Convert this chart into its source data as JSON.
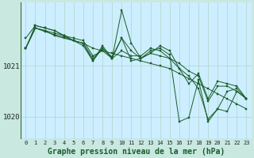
{
  "background_color": "#c8e8e0",
  "plot_bg_color": "#cceeff",
  "line_color": "#1a5c2a",
  "marker_color": "#1a5c2a",
  "xlabel": "Graphe pression niveau de la mer (hPa)",
  "yticks": [
    1020,
    1021
  ],
  "ylim": [
    1019.55,
    1022.25
  ],
  "xlim": [
    -0.5,
    23.5
  ],
  "xticks": [
    0,
    1,
    2,
    3,
    4,
    5,
    6,
    7,
    8,
    9,
    10,
    11,
    12,
    13,
    14,
    15,
    16,
    17,
    18,
    19,
    20,
    21,
    22,
    23
  ],
  "series": [
    [
      1021.35,
      1021.75,
      1021.7,
      1021.65,
      1021.6,
      1021.55,
      1021.5,
      1021.2,
      1021.3,
      1021.15,
      1021.55,
      1021.1,
      1021.15,
      1021.25,
      1021.2,
      1021.15,
      1021.05,
      1020.9,
      1020.8,
      1020.3,
      1020.6,
      1020.6,
      1020.5,
      1020.35
    ],
    [
      1021.55,
      1021.8,
      1021.75,
      1021.7,
      1021.6,
      1021.5,
      1021.45,
      1021.35,
      1021.3,
      1021.25,
      1021.2,
      1021.15,
      1021.1,
      1021.05,
      1021.0,
      1020.95,
      1020.85,
      1020.75,
      1020.65,
      1020.55,
      1020.45,
      1020.35,
      1020.25,
      1020.15
    ],
    [
      1021.35,
      1021.8,
      1021.75,
      1021.7,
      1021.6,
      1021.5,
      1021.4,
      1021.1,
      1021.35,
      1021.15,
      1022.1,
      1021.45,
      1021.15,
      1021.25,
      1021.4,
      1021.3,
      1020.95,
      1020.65,
      1020.85,
      1020.35,
      1020.7,
      1020.65,
      1020.6,
      1020.35
    ],
    [
      1021.35,
      1021.75,
      1021.7,
      1021.6,
      1021.55,
      1021.5,
      1021.45,
      1021.1,
      1021.4,
      1021.15,
      1021.3,
      1021.2,
      1021.2,
      1021.35,
      1021.3,
      1021.15,
      1020.95,
      1020.8,
      1020.55,
      1019.95,
      1020.15,
      1020.1,
      1020.5,
      1020.35
    ],
    [
      1021.35,
      1021.75,
      1021.68,
      1021.62,
      1021.57,
      1021.5,
      1021.45,
      1021.15,
      1021.35,
      1021.18,
      1021.55,
      1021.3,
      1021.15,
      1021.3,
      1021.35,
      1021.22,
      1019.9,
      1019.98,
      1020.72,
      1019.9,
      1020.15,
      1020.5,
      1020.55,
      1020.35
    ]
  ]
}
